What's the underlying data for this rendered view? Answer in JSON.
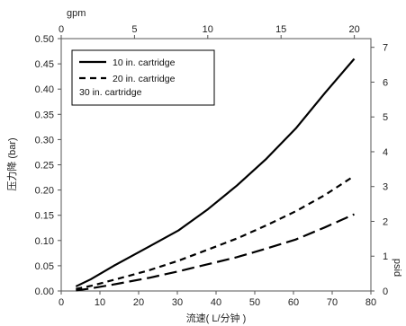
{
  "chart_data": {
    "type": "line",
    "xlabel": "流速( L/分钟 )",
    "ylabel": "压力降 (bar)",
    "top_xlabel": "gpm",
    "right_ylabel": "psid",
    "xlim": [
      0,
      80
    ],
    "ylim": [
      0,
      0.5
    ],
    "x_ticks": [
      "0",
      "10",
      "20",
      "30",
      "40",
      "50",
      "60",
      "70",
      "80"
    ],
    "y_ticks": [
      "0.00",
      "0.05",
      "0.10",
      "0.15",
      "0.20",
      "0.25",
      "0.30",
      "0.35",
      "0.40",
      "0.45",
      "0.50"
    ],
    "top_xlim": [
      0,
      21.13
    ],
    "top_x_ticks": [
      "0",
      "5",
      "10",
      "15",
      "20"
    ],
    "right_ylim": [
      0,
      7.25
    ],
    "right_y_ticks": [
      "0",
      "1",
      "2",
      "3",
      "4",
      "5",
      "6",
      "7"
    ],
    "grid": false,
    "legend_position": "top-left",
    "series": [
      {
        "name": "10 in. cartridge",
        "style": "solid",
        "color": "#000000",
        "x": [
          3.8,
          7.6,
          13.6,
          22.7,
          30.3,
          37.9,
          45.4,
          53,
          60.6,
          68.1,
          75.7
        ],
        "y": [
          0.009,
          0.023,
          0.05,
          0.088,
          0.12,
          0.162,
          0.209,
          0.262,
          0.322,
          0.392,
          0.46
        ]
      },
      {
        "name": "20 in. cartridge",
        "style": "dashed",
        "color": "#000000",
        "x": [
          3.8,
          7.6,
          13.6,
          22.7,
          30.3,
          37.9,
          45.4,
          53,
          60.6,
          68.1,
          75.7
        ],
        "y": [
          0.004,
          0.01,
          0.022,
          0.041,
          0.06,
          0.082,
          0.104,
          0.13,
          0.158,
          0.19,
          0.228
        ]
      },
      {
        "name": "30 in. cartridge",
        "style": "long-dash",
        "color": "#000000",
        "x": [
          3.8,
          7.6,
          13.6,
          22.7,
          30.3,
          37.9,
          45.4,
          53,
          60.6,
          68.1,
          75.7
        ],
        "y": [
          0.001,
          0.005,
          0.013,
          0.026,
          0.039,
          0.053,
          0.067,
          0.084,
          0.102,
          0.126,
          0.152
        ]
      }
    ]
  }
}
